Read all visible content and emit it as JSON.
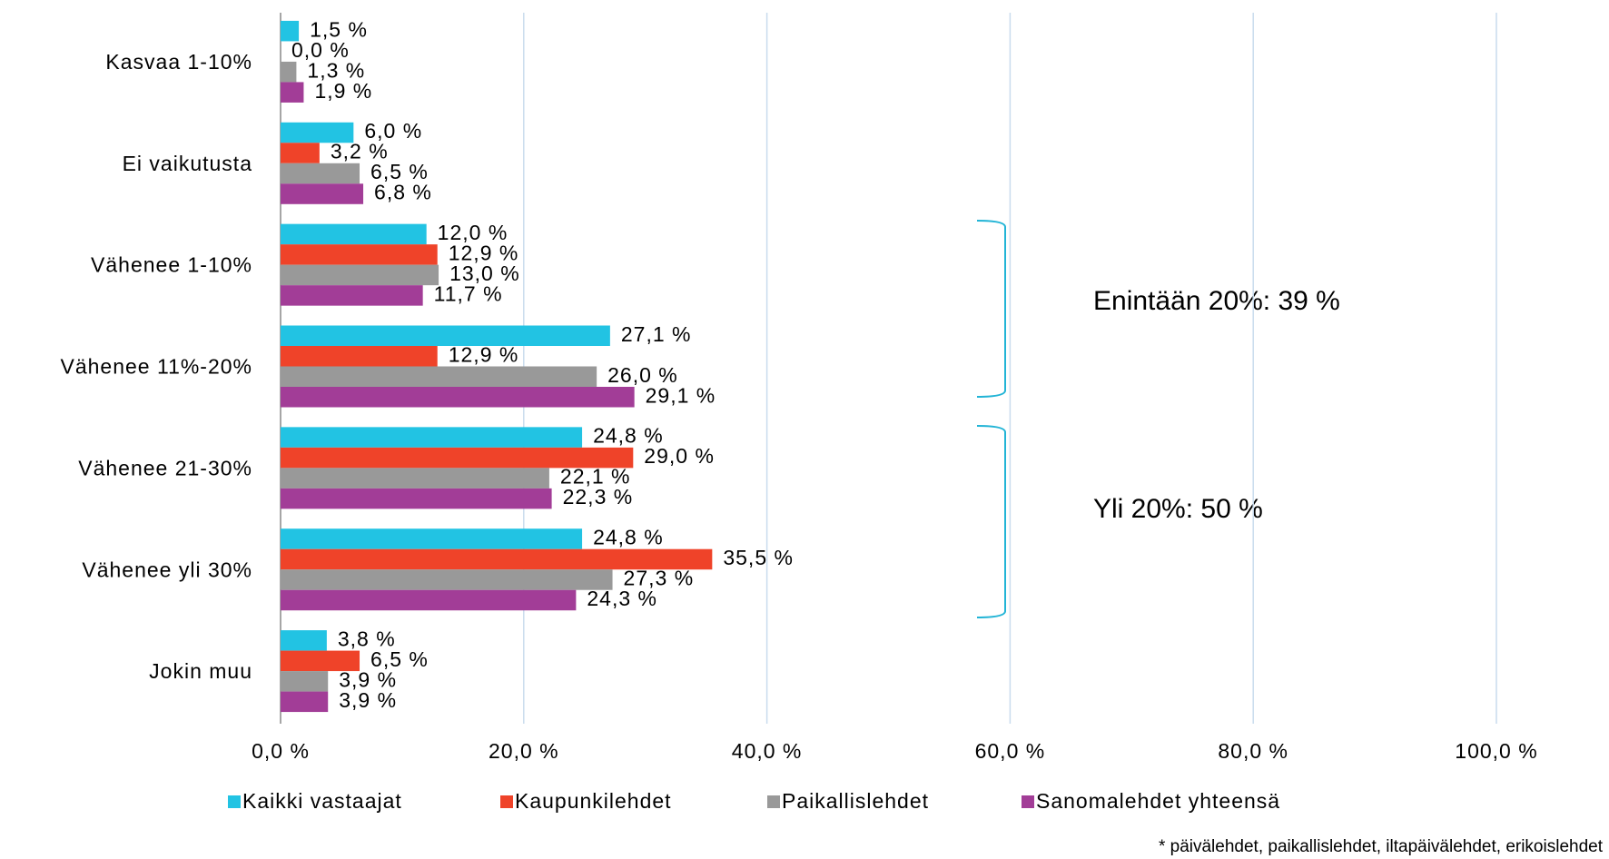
{
  "chart_data": {
    "type": "bar",
    "orientation": "horizontal",
    "categories": [
      "Kasvaa 1-10%",
      "Ei vaikutusta",
      "Vähenee 1-10%",
      "Vähenee 11%-20%",
      "Vähenee 21-30%",
      "Vähenee yli 30%",
      "Jokin muu"
    ],
    "series": [
      {
        "name": "Kaikki vastaajat",
        "color": "#22c3e3",
        "values": [
          1.5,
          6.0,
          12.0,
          27.1,
          24.8,
          24.8,
          3.8
        ],
        "value_labels": [
          "1,5 %",
          "6,0 %",
          "12,0 %",
          "27,1 %",
          "24,8 %",
          "24,8 %",
          "3,8 %"
        ]
      },
      {
        "name": "Kaupunkilehdet",
        "color": "#ef4329",
        "values": [
          0.0,
          3.2,
          12.9,
          12.9,
          29.0,
          35.5,
          6.5
        ],
        "value_labels": [
          "0,0 %",
          "3,2 %",
          "12,9 %",
          "12,9 %",
          "29,0 %",
          "35,5 %",
          "6,5 %"
        ]
      },
      {
        "name": "Paikallislehdet",
        "color": "#999999",
        "values": [
          1.3,
          6.5,
          13.0,
          26.0,
          22.1,
          27.3,
          3.9
        ],
        "value_labels": [
          "1,3 %",
          "6,5 %",
          "13,0 %",
          "26,0 %",
          "22,1 %",
          "27,3 %",
          "3,9 %"
        ]
      },
      {
        "name": "Sanomalehdet yhteensä",
        "color": "#a23d97",
        "values": [
          1.9,
          6.8,
          11.7,
          29.1,
          22.3,
          24.3,
          3.9
        ],
        "value_labels": [
          "1,9 %",
          "6,8 %",
          "11,7 %",
          "29,1 %",
          "22,3 %",
          "24,3 %",
          "3,9 %"
        ]
      }
    ],
    "xlim": [
      0,
      100
    ],
    "xticks": [
      {
        "value": 0,
        "label": "0,0 %"
      },
      {
        "value": 20,
        "label": "20,0 %"
      },
      {
        "value": 40,
        "label": "40,0 %"
      },
      {
        "value": 60,
        "label": "60,0 %"
      },
      {
        "value": 80,
        "label": "80,0 %"
      },
      {
        "value": 100,
        "label": "100,0 %"
      }
    ],
    "grid": true,
    "legend": "bottom",
    "annotations": [
      "Enintään 20%: 39 %",
      "Yli 20%: 50 %"
    ],
    "footnote": "* päivälehdet, paikallislehdet, iltapäivälehdet, erikoislehdet"
  }
}
